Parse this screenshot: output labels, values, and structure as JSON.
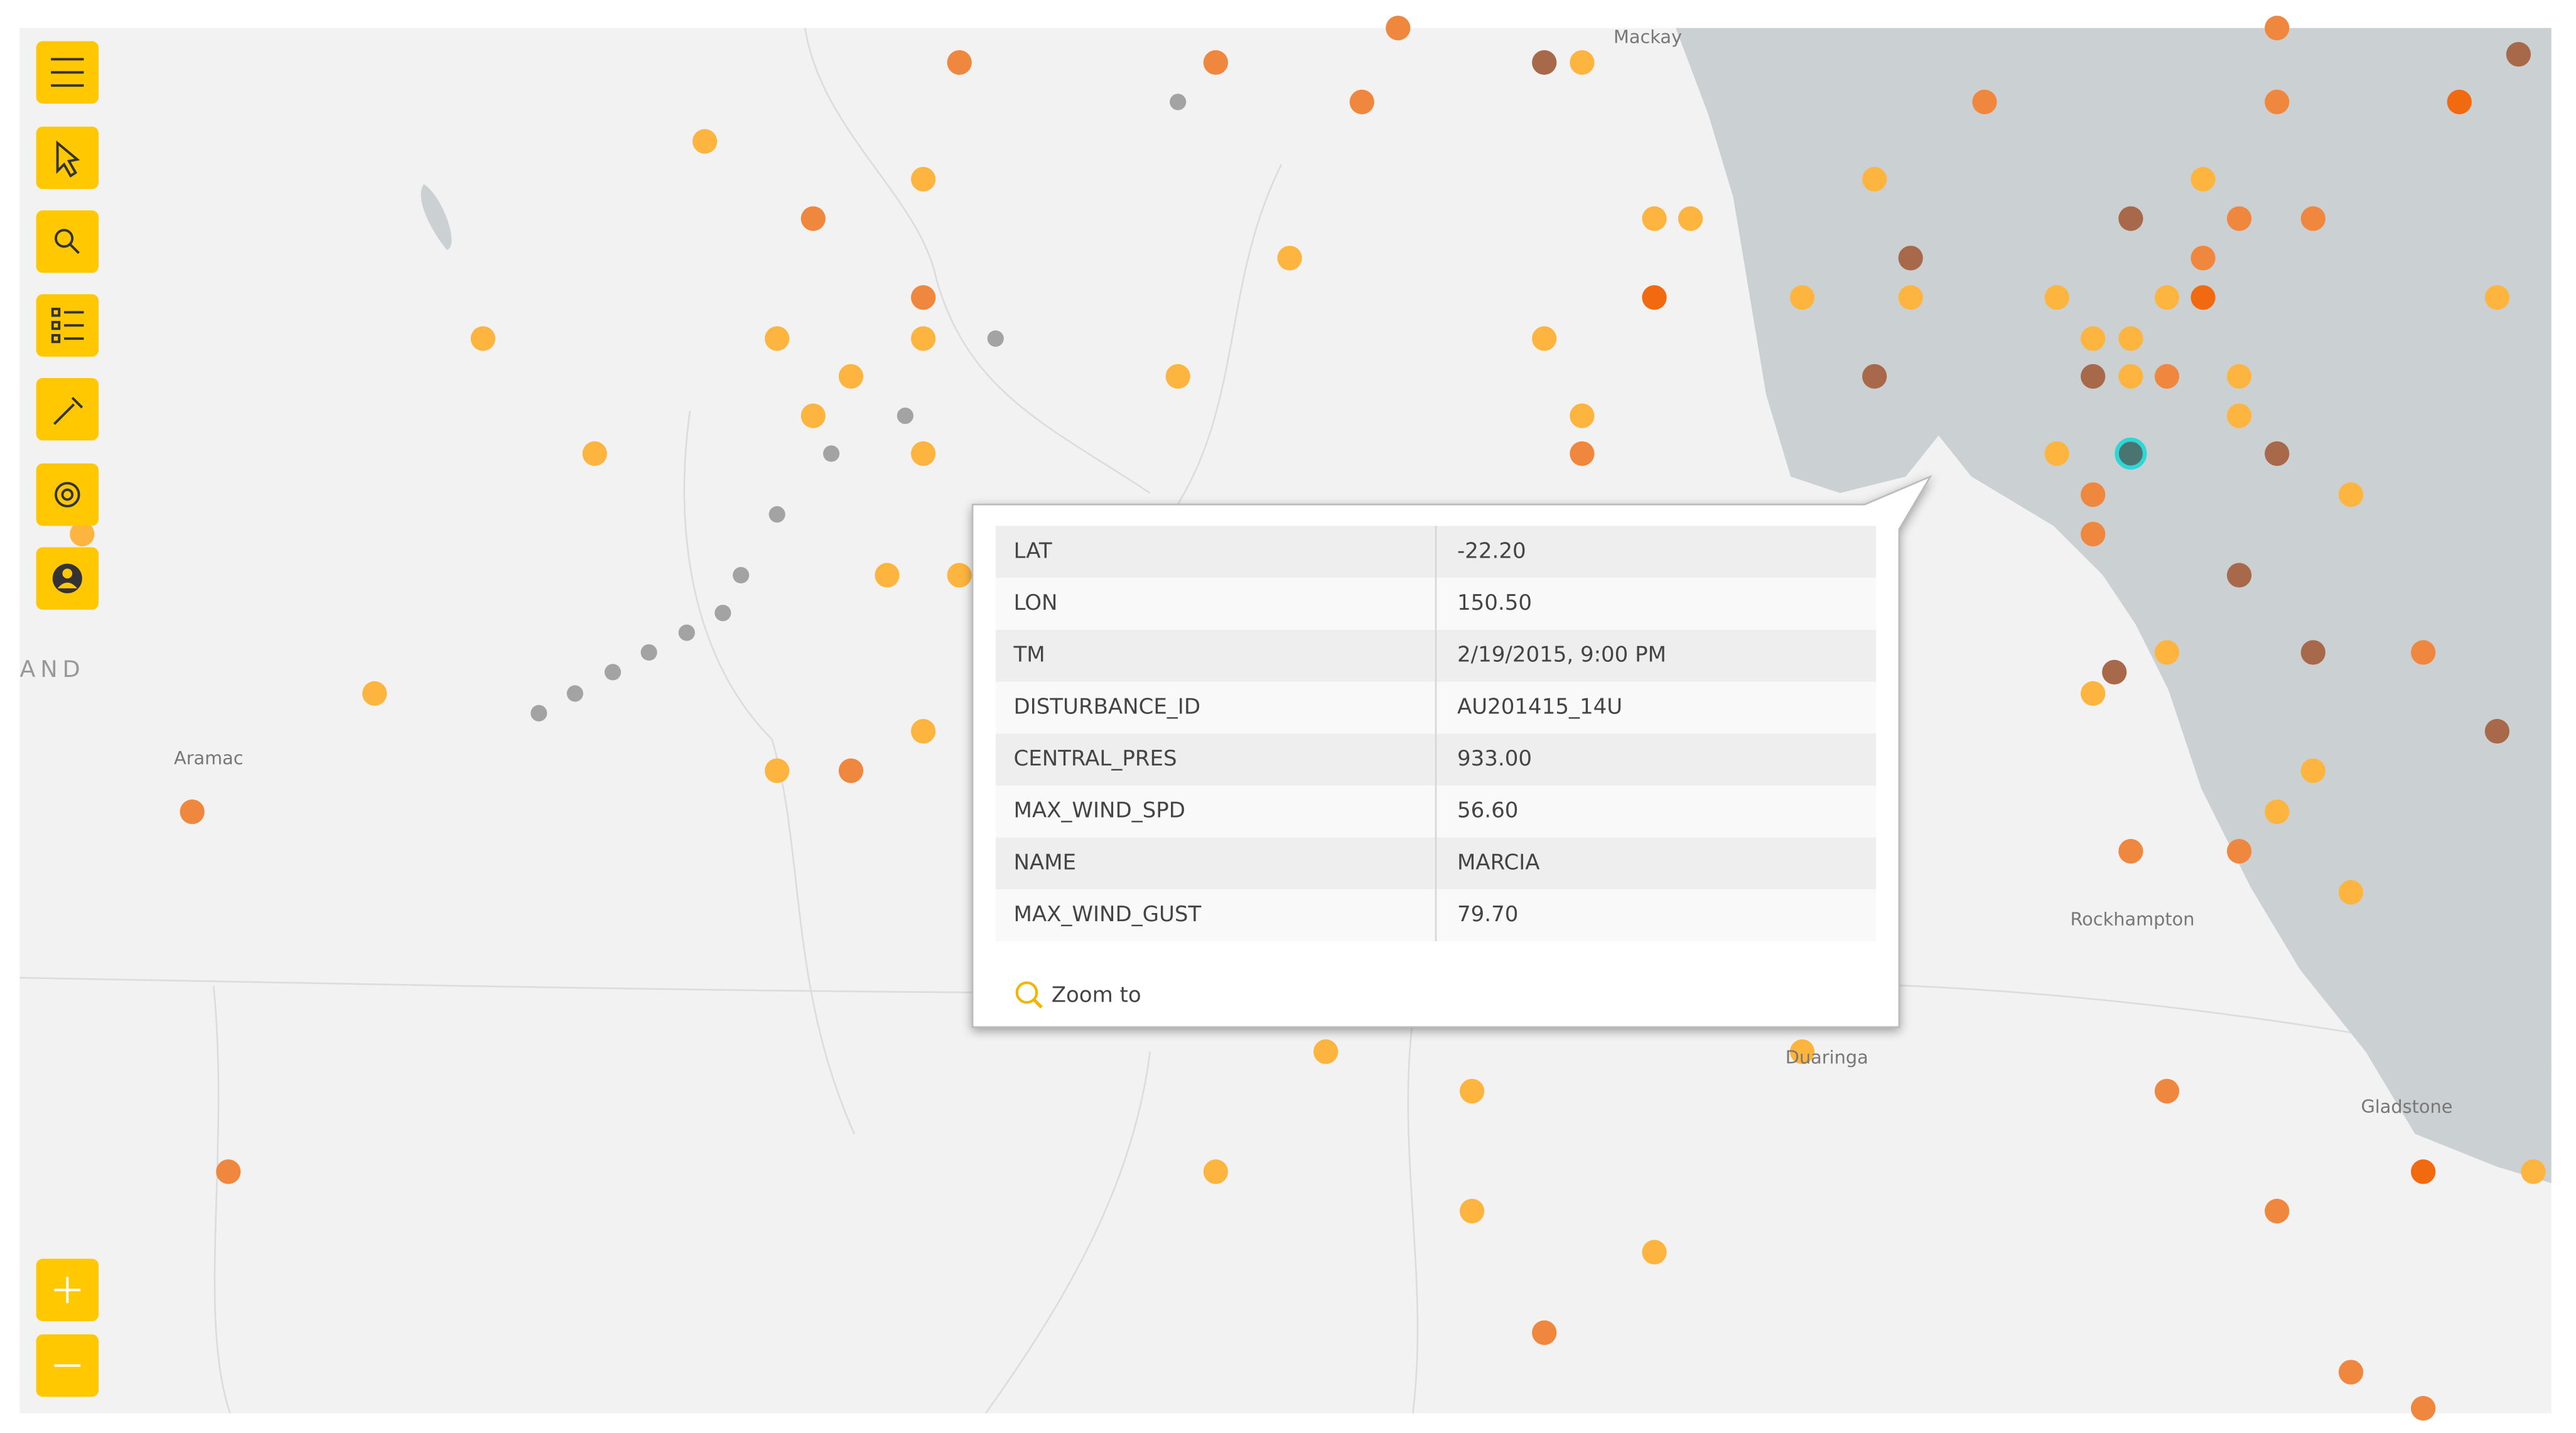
{
  "map": {
    "place_labels": [
      "Mackay",
      "AND",
      "Aramac",
      "Rockhampton",
      "Duaringa",
      "Gladstone"
    ]
  },
  "popup": {
    "rows": [
      [
        "LAT",
        "-22.20"
      ],
      [
        "LON",
        "150.50"
      ],
      [
        "TM",
        "2/19/2015, 9:00 PM"
      ],
      [
        "DISTURBANCE_ID",
        "AU201415_14U"
      ],
      [
        "CENTRAL_PRES",
        "933.00"
      ],
      [
        "MAX_WIND_SPD",
        "56.60"
      ],
      [
        "NAME",
        "MARCIA"
      ],
      [
        "MAX_WIND_GUST",
        "79.70"
      ]
    ],
    "action": "Zoom to"
  }
}
